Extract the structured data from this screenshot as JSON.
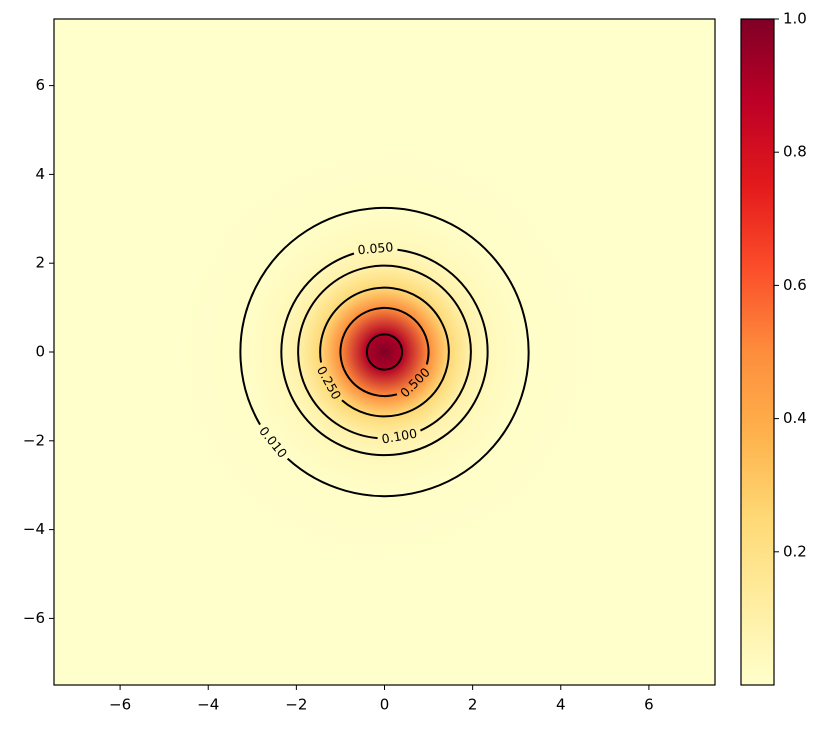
{
  "chart_data": {
    "type": "contour",
    "colormap": [
      "#ffffcc",
      "#ffeda0",
      "#fed976",
      "#feb24c",
      "#fd8d3c",
      "#fc4e2a",
      "#e31a1c",
      "#bd0026",
      "#800026"
    ],
    "clim": [
      0,
      1
    ],
    "cticks": [
      0.2,
      0.4,
      0.6,
      0.8,
      {
        "value": 1,
        "label": "1.0"
      }
    ],
    "xlim": [
      -7.5,
      7.5
    ],
    "ylim": [
      -7.5,
      7.5
    ],
    "xticks": [
      {
        "value": -6,
        "label": "−6"
      },
      {
        "value": -4,
        "label": "−4"
      },
      {
        "value": -2,
        "label": "−2"
      },
      0,
      2,
      4,
      6
    ],
    "yticks": [
      {
        "value": -6,
        "label": "−6"
      },
      {
        "value": -4,
        "label": "−4"
      },
      {
        "value": -2,
        "label": "−2"
      },
      0,
      2,
      4,
      6
    ],
    "center": [
      0,
      0
    ],
    "contours": [
      {
        "level": 0.9,
        "radius": 0.4
      },
      {
        "level": 0.5,
        "radius": 1.0,
        "label": "0.500"
      },
      {
        "level": 0.25,
        "radius": 1.46,
        "label": "0.250"
      },
      {
        "level": 0.1,
        "radius": 1.96,
        "label": "0.100"
      },
      {
        "level": 0.05,
        "radius": 2.34,
        "label": "0.050"
      },
      {
        "level": 0.01,
        "radius": 3.27,
        "label": "0.010"
      }
    ]
  }
}
